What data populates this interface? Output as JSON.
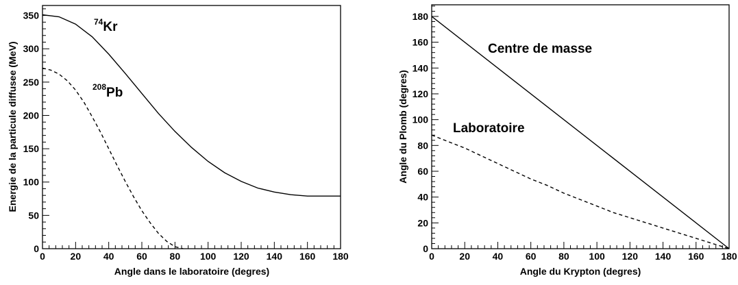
{
  "chart_data": [
    {
      "type": "line",
      "xlabel": "Angle dans le laboratoire (degres)",
      "ylabel": "Energie de la particule diffusee (MeV)",
      "xlim": [
        0,
        180
      ],
      "ylim": [
        0,
        365
      ],
      "x_ticks": [
        "0",
        "20",
        "40",
        "60",
        "80",
        "100",
        "120",
        "140",
        "160",
        "180"
      ],
      "y_ticks": [
        "0",
        "50",
        "100",
        "150",
        "200",
        "250",
        "300",
        "350"
      ],
      "grid": false,
      "annotations": [
        {
          "mass": "74",
          "element": "Kr"
        },
        {
          "mass": "208",
          "element": "Pb"
        }
      ],
      "series": [
        {
          "style": "solid",
          "x": [
            0,
            10,
            20,
            30,
            40,
            50,
            60,
            70,
            80,
            90,
            100,
            110,
            120,
            130,
            140,
            150,
            160,
            170,
            180
          ],
          "y": [
            351,
            348,
            337,
            318,
            292,
            263,
            233,
            203,
            176,
            152,
            131,
            114,
            101,
            91,
            85,
            81,
            79,
            79,
            79
          ]
        },
        {
          "style": "dashed",
          "x": [
            0,
            5,
            10,
            15,
            20,
            25,
            30,
            35,
            40,
            45,
            50,
            55,
            60,
            65,
            70,
            75,
            80,
            85
          ],
          "y": [
            271,
            268,
            262,
            252,
            238,
            220,
            198,
            175,
            150,
            125,
            101,
            78,
            57,
            39,
            23,
            11,
            3,
            0
          ]
        }
      ]
    },
    {
      "type": "line",
      "xlabel": "Angle du Krypton (degres)",
      "ylabel": "Angle du Plomb (degres)",
      "xlim": [
        0,
        180
      ],
      "ylim": [
        0,
        189
      ],
      "x_ticks": [
        "0",
        "20",
        "40",
        "60",
        "80",
        "100",
        "120",
        "140",
        "160",
        "180"
      ],
      "y_ticks": [
        "0",
        "20",
        "40",
        "60",
        "80",
        "100",
        "120",
        "140",
        "160",
        "180"
      ],
      "grid": false,
      "annotations": [
        {
          "text": "Centre de masse"
        },
        {
          "text": "Laboratoire"
        }
      ],
      "series": [
        {
          "style": "solid",
          "x": [
            0,
            180
          ],
          "y": [
            180,
            0
          ]
        },
        {
          "style": "dashed",
          "x": [
            0,
            10,
            20,
            30,
            40,
            50,
            60,
            70,
            80,
            90,
            100,
            110,
            120,
            130,
            140,
            150,
            160,
            170,
            180
          ],
          "y": [
            88,
            83,
            78,
            72,
            66,
            60,
            54,
            49,
            43,
            38,
            33,
            28,
            24,
            20,
            16,
            12,
            8,
            4,
            0
          ]
        }
      ]
    }
  ]
}
